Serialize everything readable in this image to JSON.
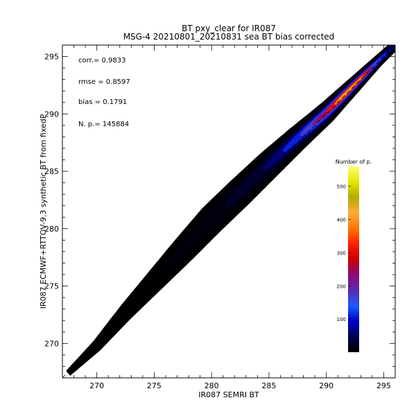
{
  "chart_data": {
    "type": "heatmap",
    "title": "BT pxy_clear for IR087",
    "subtitle": "MSG-4 20210801_20210831 sea BT bias corrected",
    "xlabel": "IR087 SEMRI BT",
    "ylabel": "IR087 ECMWF+RTTOV-9.3 synthetic BT from fixedP",
    "xlim": [
      267,
      296
    ],
    "ylim": [
      267,
      296
    ],
    "xticks": [
      "270",
      "275",
      "280",
      "285",
      "290",
      "295"
    ],
    "yticks": [
      "270",
      "275",
      "280",
      "285",
      "290",
      "295"
    ],
    "grid": false,
    "stats": {
      "corr": "corr.= 0.9833",
      "rmse": "rmse = 0.8597",
      "bias": "bias = 0.1791",
      "np": "N. p.=  145884"
    },
    "colorbar": {
      "title": "Number of p.",
      "range": [
        0,
        560
      ],
      "ticks": [
        "100",
        "200",
        "300",
        "400",
        "500"
      ],
      "colors": [
        "#000000",
        "#000050",
        "#0000c8",
        "#1e5aff",
        "#5a2ab4",
        "#8c0a78",
        "#c80000",
        "#ff1e00",
        "#ff7800",
        "#ffaa3c",
        "#b4aa00",
        "#e6e600",
        "#ffff78"
      ]
    },
    "density_ridge": [
      {
        "x": 267.5,
        "y": 267.4,
        "half_width": 0.4,
        "density": 1
      },
      {
        "x": 270,
        "y": 269.8,
        "half_width": 0.7,
        "density": 2
      },
      {
        "x": 272.5,
        "y": 272.7,
        "half_width": 1.0,
        "density": 4
      },
      {
        "x": 275,
        "y": 275.4,
        "half_width": 1.3,
        "density": 6
      },
      {
        "x": 277.5,
        "y": 278.1,
        "half_width": 1.6,
        "density": 10
      },
      {
        "x": 280,
        "y": 280.8,
        "half_width": 1.8,
        "density": 18
      },
      {
        "x": 282.5,
        "y": 283.2,
        "half_width": 1.8,
        "density": 35
      },
      {
        "x": 285,
        "y": 285.6,
        "half_width": 1.7,
        "density": 70
      },
      {
        "x": 287.5,
        "y": 287.9,
        "half_width": 1.5,
        "density": 160
      },
      {
        "x": 290,
        "y": 290.1,
        "half_width": 1.3,
        "density": 320
      },
      {
        "x": 291.5,
        "y": 291.6,
        "half_width": 1.1,
        "density": 480
      },
      {
        "x": 293,
        "y": 293.1,
        "half_width": 0.9,
        "density": 420
      },
      {
        "x": 294.5,
        "y": 294.6,
        "half_width": 0.7,
        "density": 200
      },
      {
        "x": 296,
        "y": 296.0,
        "half_width": 0.6,
        "density": 60
      }
    ]
  }
}
